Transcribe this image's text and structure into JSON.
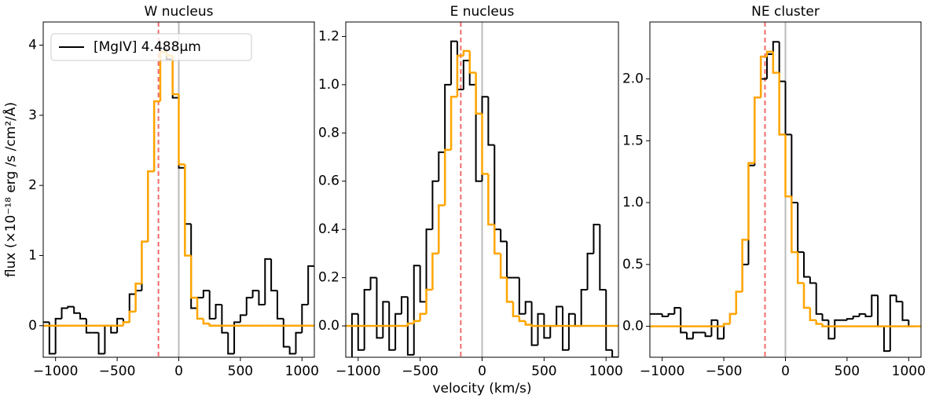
{
  "chart_data": [
    {
      "type": "step",
      "title": "W nucleus",
      "ylabel": "flux (×10⁻¹⁸ erg /s /cm²/Å)",
      "legend": "upper left",
      "x": [
        -1075,
        -1025,
        -975,
        -925,
        -875,
        -825,
        -775,
        -725,
        -675,
        -625,
        -575,
        -525,
        -475,
        -425,
        -375,
        -325,
        -275,
        -225,
        -175,
        -125,
        -75,
        -25,
        25,
        75,
        125,
        175,
        225,
        275,
        325,
        375,
        425,
        475,
        525,
        575,
        625,
        675,
        725,
        775,
        825,
        875,
        925,
        975,
        1025,
        1075
      ],
      "series": [
        {
          "name": "[MgIV] 4.488μm",
          "color": "#000000",
          "values": [
            0.05,
            -0.4,
            0.1,
            0.25,
            0.27,
            0.18,
            0.1,
            -0.1,
            -0.1,
            -0.4,
            0.0,
            -0.1,
            0.1,
            0.05,
            0.45,
            0.5,
            1.2,
            2.2,
            3.2,
            3.95,
            3.8,
            3.25,
            2.25,
            1.45,
            0.25,
            0.4,
            0.5,
            0.1,
            0.3,
            -0.1,
            -0.4,
            0.05,
            0.15,
            0.4,
            0.5,
            0.3,
            0.95,
            0.5,
            0.1,
            -0.3,
            -0.4,
            -0.1,
            0.3,
            0.85
          ]
        },
        {
          "color": "#ffa500",
          "values": [
            0,
            0,
            0,
            0,
            0,
            0,
            0,
            0,
            0,
            0,
            0,
            0,
            0,
            0.05,
            0.2,
            0.6,
            1.2,
            2.2,
            3.2,
            3.9,
            3.85,
            3.3,
            2.3,
            1.0,
            0.4,
            0.1,
            0.03,
            0,
            0,
            0,
            0,
            0,
            0,
            0,
            0,
            0,
            0,
            0,
            0,
            0,
            0,
            0,
            0,
            0
          ]
        }
      ],
      "vlines": [
        {
          "value": -165,
          "color": "#f26b6b",
          "dashed": true
        },
        {
          "value": 0,
          "color": "#bbbbbb",
          "dashed": false
        }
      ],
      "xlim": [
        -1100,
        1100
      ],
      "ylim": [
        -0.45,
        4.33
      ],
      "xticks": [
        {
          "value": -1000,
          "label": "−1000"
        },
        {
          "value": -500,
          "label": "−500"
        },
        0,
        500,
        1000
      ],
      "yticks": [
        0,
        1,
        2,
        3,
        4
      ]
    },
    {
      "type": "step",
      "title": "E nucleus",
      "xlabel": "velocity (km/s)",
      "x": [
        -1075,
        -1025,
        -975,
        -925,
        -875,
        -825,
        -775,
        -725,
        -675,
        -625,
        -575,
        -525,
        -475,
        -425,
        -375,
        -325,
        -275,
        -225,
        -175,
        -125,
        -75,
        -25,
        25,
        75,
        125,
        175,
        225,
        275,
        325,
        375,
        425,
        475,
        525,
        575,
        625,
        675,
        725,
        775,
        825,
        875,
        925,
        975,
        1025,
        1075
      ],
      "series": [
        {
          "color": "#000000",
          "values": [
            -0.2,
            0.05,
            -0.1,
            0.15,
            0.2,
            -0.05,
            0.1,
            -0.1,
            0.05,
            0.12,
            -0.12,
            0.25,
            0.1,
            0.4,
            0.6,
            0.72,
            1.0,
            1.18,
            0.98,
            1.1,
            1.0,
            0.6,
            0.95,
            0.75,
            0.4,
            0.35,
            0.2,
            0.2,
            0.05,
            0.1,
            -0.08,
            0.05,
            -0.05,
            0.0,
            0.08,
            -0.1,
            0.05,
            0.0,
            0.15,
            0.3,
            0.42,
            0.15,
            -0.1,
            -0.13
          ]
        },
        {
          "color": "#ffa500",
          "values": [
            0,
            0,
            0,
            0,
            0,
            0,
            0,
            0,
            0,
            0,
            0.01,
            0.02,
            0.05,
            0.15,
            0.3,
            0.5,
            0.73,
            0.95,
            1.12,
            1.14,
            1.05,
            0.88,
            0.63,
            0.42,
            0.3,
            0.2,
            0.1,
            0.04,
            0.02,
            0.005,
            0,
            0,
            0,
            0,
            0,
            0,
            0,
            0,
            0,
            0,
            0,
            0,
            0,
            0
          ]
        }
      ],
      "vlines": [
        {
          "value": -172,
          "color": "#f26b6b",
          "dashed": true
        },
        {
          "value": 0,
          "color": "#bbbbbb",
          "dashed": false
        }
      ],
      "xlim": [
        -1100,
        1100
      ],
      "ylim": [
        -0.13,
        1.26
      ],
      "xticks": [
        {
          "value": -1000,
          "label": "−1000"
        },
        {
          "value": -500,
          "label": "−500"
        },
        0,
        500,
        1000
      ],
      "yticks": [
        {
          "value": 0,
          "label": "0.0"
        },
        0.2,
        0.4,
        0.6,
        0.8,
        {
          "value": 1,
          "label": "1.0"
        },
        1.2
      ]
    },
    {
      "type": "step",
      "title": "NE cluster",
      "x": [
        -1075,
        -1025,
        -975,
        -925,
        -875,
        -825,
        -775,
        -725,
        -675,
        -625,
        -575,
        -525,
        -475,
        -425,
        -375,
        -325,
        -275,
        -225,
        -175,
        -125,
        -75,
        -25,
        25,
        75,
        125,
        175,
        225,
        275,
        325,
        375,
        425,
        475,
        525,
        575,
        625,
        675,
        725,
        775,
        825,
        875,
        925,
        975,
        1025,
        1075
      ],
      "series": [
        {
          "color": "#000000",
          "values": [
            0.1,
            0.1,
            0.08,
            0.1,
            0.15,
            -0.05,
            -0.1,
            -0.05,
            -0.05,
            -0.08,
            0.05,
            -0.1,
            0.02,
            0.1,
            0.28,
            0.5,
            1.3,
            1.85,
            2.0,
            2.2,
            2.3,
            1.98,
            1.55,
            1.0,
            0.6,
            0.4,
            0.35,
            0.1,
            0.05,
            -0.1,
            0.05,
            0.05,
            0.06,
            0.08,
            0.1,
            0.08,
            0.25,
            0.0,
            -0.2,
            0.25,
            0.2,
            0.05,
            0.0,
            null
          ]
        },
        {
          "color": "#ffa500",
          "values": [
            0,
            0,
            0,
            0,
            0,
            0,
            0,
            0,
            0,
            0,
            0,
            0,
            0.02,
            0.1,
            0.28,
            0.7,
            1.32,
            1.85,
            2.18,
            2.22,
            2.05,
            1.55,
            1.05,
            0.6,
            0.35,
            0.15,
            0.05,
            0.02,
            0,
            0,
            0,
            0,
            0,
            0,
            0,
            0,
            0,
            0,
            0,
            0,
            0,
            0,
            0,
            0
          ]
        }
      ],
      "vlines": [
        {
          "value": -166,
          "color": "#f26b6b",
          "dashed": true
        },
        {
          "value": 0,
          "color": "#bbbbbb",
          "dashed": false
        }
      ],
      "xlim": [
        -1100,
        1100
      ],
      "ylim": [
        -0.25,
        2.46
      ],
      "xticks": [
        {
          "value": -1000,
          "label": "−1000"
        },
        {
          "value": -500,
          "label": "−500"
        },
        0,
        500,
        1000
      ],
      "yticks": [
        {
          "value": 0,
          "label": "0.0"
        },
        0.5,
        {
          "value": 1,
          "label": "1.0"
        },
        1.5,
        {
          "value": 2,
          "label": "2.0"
        }
      ]
    }
  ]
}
